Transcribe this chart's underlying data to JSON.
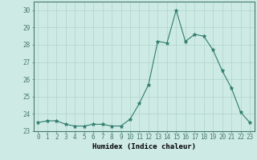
{
  "x": [
    0,
    1,
    2,
    3,
    4,
    5,
    6,
    7,
    8,
    9,
    10,
    11,
    12,
    13,
    14,
    15,
    16,
    17,
    18,
    19,
    20,
    21,
    22,
    23
  ],
  "y": [
    23.5,
    23.6,
    23.6,
    23.4,
    23.3,
    23.3,
    23.4,
    23.4,
    23.3,
    23.3,
    23.7,
    24.6,
    25.7,
    28.2,
    28.1,
    30.0,
    28.2,
    28.6,
    28.5,
    27.7,
    26.5,
    25.5,
    24.1,
    23.5
  ],
  "line_color": "#2e7d6e",
  "marker": "*",
  "marker_size": 3.5,
  "bg_color": "#ceeae4",
  "grid_color": "#aed4cc",
  "xlabel": "Humidex (Indice chaleur)",
  "xlim": [
    -0.5,
    23.5
  ],
  "ylim": [
    23.0,
    30.5
  ],
  "yticks": [
    23,
    24,
    25,
    26,
    27,
    28,
    29,
    30
  ],
  "xticks": [
    0,
    1,
    2,
    3,
    4,
    5,
    6,
    7,
    8,
    9,
    10,
    11,
    12,
    13,
    14,
    15,
    16,
    17,
    18,
    19,
    20,
    21,
    22,
    23
  ],
  "tick_fontsize": 5.5,
  "label_fontsize": 6.5,
  "spine_color": "#447a6e"
}
